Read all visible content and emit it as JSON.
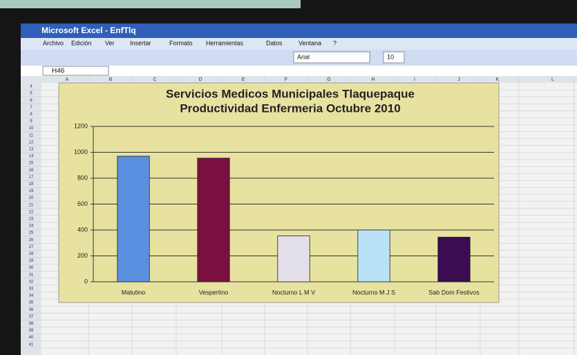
{
  "window": {
    "title": "Microsoft Excel - EnfTlq",
    "menu": [
      "Archivo",
      "Edición",
      "Ver",
      "Insertar",
      "Formato",
      "Herramientas",
      "Datos",
      "Ventana",
      "?"
    ],
    "name_box": "H46",
    "font": "Arial",
    "font_size": "10",
    "columns": [
      "A",
      "B",
      "C",
      "D",
      "E",
      "F",
      "G",
      "H",
      "I",
      "J",
      "K",
      "L"
    ],
    "rows": [
      "4",
      "5",
      "6",
      "7",
      "8",
      "9",
      "10",
      "11",
      "12",
      "13",
      "14",
      "15",
      "16",
      "17",
      "18",
      "19",
      "20",
      "21",
      "22",
      "23",
      "24",
      "25",
      "26",
      "27",
      "28",
      "29",
      "30",
      "31",
      "32",
      "33",
      "34",
      "35",
      "36",
      "37",
      "38",
      "39",
      "40",
      "41"
    ]
  },
  "chart_data": {
    "type": "bar",
    "title": "Servicios Medicos Municipales Tlaquepaque",
    "subtitle": "Productividad Enfermeria Octubre 2010",
    "categories": [
      "Matutino",
      "Vespertino",
      "Nocturno  L M V",
      "Nocturno M J S",
      "Sab Dom Festivos"
    ],
    "values": [
      970,
      955,
      355,
      400,
      345
    ],
    "colors": [
      "#5b8fe0",
      "#7a1040",
      "#e2dfe9",
      "#b9e1f6",
      "#3a0c52"
    ],
    "ylim": [
      0,
      1200
    ],
    "yticks": [
      0,
      200,
      400,
      600,
      800,
      1000,
      1200
    ],
    "grid": true
  }
}
